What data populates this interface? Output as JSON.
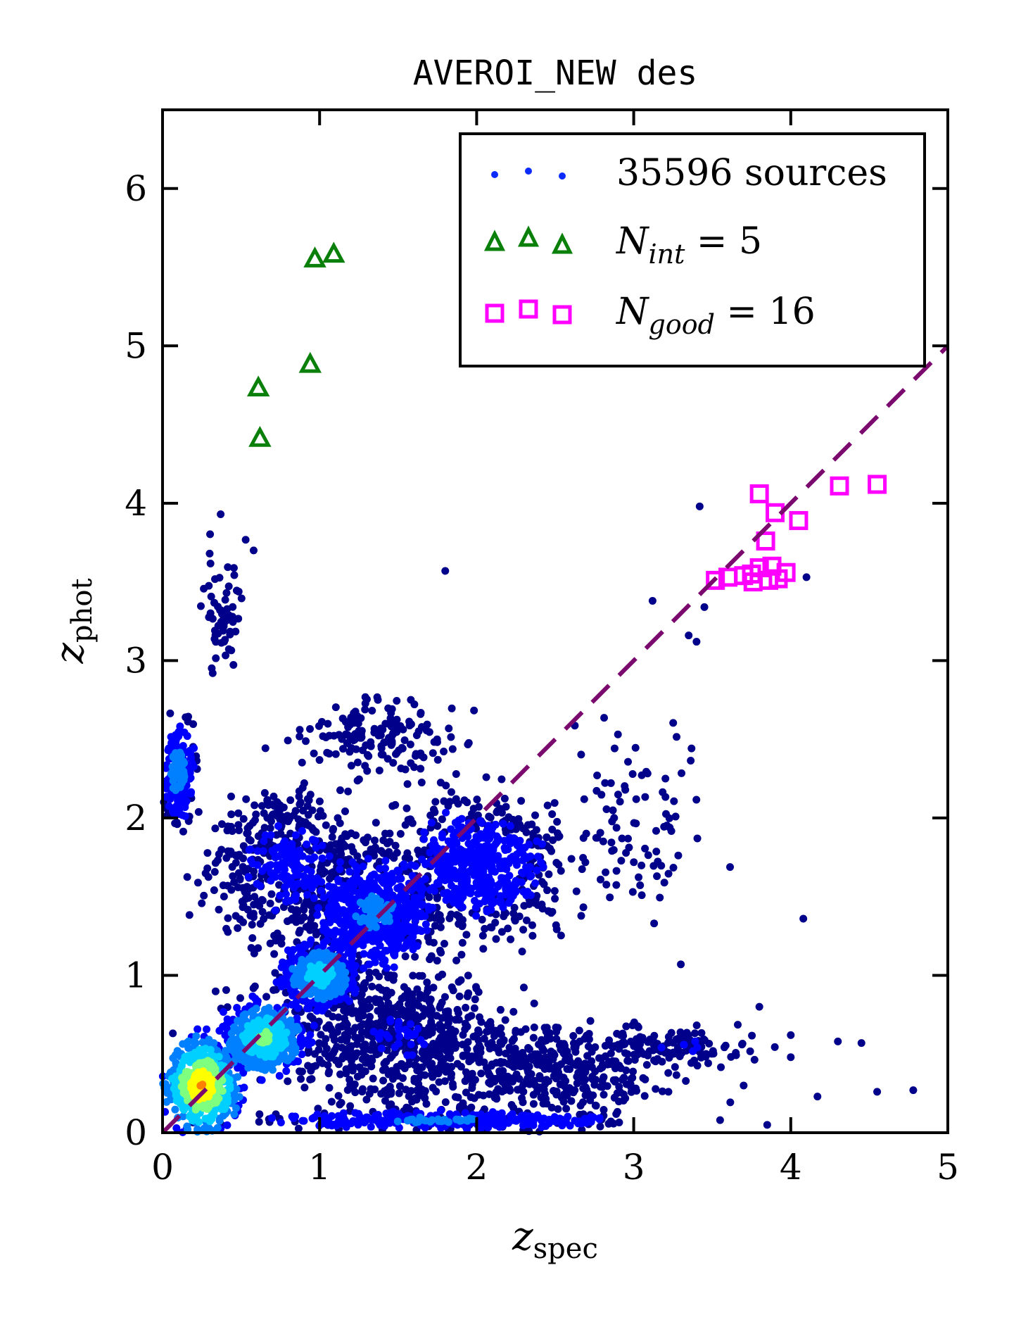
{
  "chart_data": {
    "type": "scatter",
    "title": "AVEROI_NEW des",
    "xlabel": "z",
    "xlabel_sub": "spec",
    "ylabel": "z",
    "ylabel_sub": "phot",
    "xlim": [
      0,
      5
    ],
    "ylim": [
      0,
      6.5
    ],
    "x_ticks": [
      "0",
      "1",
      "2",
      "3",
      "4",
      "5"
    ],
    "y_ticks": [
      "0",
      "1",
      "2",
      "3",
      "4",
      "5",
      "6"
    ],
    "grid": false,
    "legend_position": "top-right",
    "reference_line": {
      "x": [
        0,
        5
      ],
      "y": [
        0,
        5
      ],
      "style": "dashed",
      "color": "#7b0a6e"
    },
    "legend": [
      {
        "text": "35596 sources"
      },
      {
        "var": "N",
        "sub": "int",
        "rest": " = 5"
      },
      {
        "var": "N",
        "sub": "good",
        "rest": " = 16"
      }
    ],
    "series": [
      {
        "name": "35596 sources",
        "marker": "dot",
        "colormap": [
          "#00008b",
          "#0000ff",
          "#0080ff",
          "#00d0ff",
          "#7fff7f",
          "#ffff00",
          "#ff8000"
        ],
        "clusters": [
          {
            "cx": 0.25,
            "cy": 0.3,
            "sx": 0.18,
            "sy": 0.22,
            "n": 600,
            "density": 0.85
          },
          {
            "cx": 0.65,
            "cy": 0.6,
            "sx": 0.2,
            "sy": 0.18,
            "n": 500,
            "density": 0.6
          },
          {
            "cx": 1.0,
            "cy": 1.0,
            "sx": 0.18,
            "sy": 0.16,
            "n": 450,
            "density": 0.5
          },
          {
            "cx": 1.35,
            "cy": 1.4,
            "sx": 0.3,
            "sy": 0.3,
            "n": 600,
            "density": 0.3
          },
          {
            "cx": 2.0,
            "cy": 1.7,
            "sx": 0.45,
            "sy": 0.35,
            "n": 700,
            "density": 0.2
          },
          {
            "cx": 0.8,
            "cy": 1.7,
            "sx": 0.4,
            "sy": 0.4,
            "n": 500,
            "density": 0.15
          },
          {
            "cx": 0.1,
            "cy": 2.3,
            "sx": 0.08,
            "sy": 0.25,
            "n": 200,
            "density": 0.35
          },
          {
            "cx": 1.5,
            "cy": 0.6,
            "sx": 0.6,
            "sy": 0.35,
            "n": 700,
            "density": 0.12
          },
          {
            "cx": 2.5,
            "cy": 0.4,
            "sx": 0.6,
            "sy": 0.25,
            "n": 400,
            "density": 0.1
          },
          {
            "cx": 1.8,
            "cy": 0.08,
            "sx": 0.9,
            "sy": 0.05,
            "n": 300,
            "density": 0.3
          },
          {
            "cx": 1.4,
            "cy": 2.5,
            "sx": 0.4,
            "sy": 0.2,
            "n": 160,
            "density": 0.05
          },
          {
            "cx": 0.4,
            "cy": 3.3,
            "sx": 0.1,
            "sy": 0.35,
            "n": 60,
            "density": 0.02
          },
          {
            "cx": 3.0,
            "cy": 2.0,
            "sx": 0.4,
            "sy": 0.5,
            "n": 90,
            "density": 0.03
          },
          {
            "cx": 3.3,
            "cy": 0.55,
            "sx": 0.4,
            "sy": 0.1,
            "n": 120,
            "density": 0.12
          }
        ],
        "outliers": [
          [
            4.78,
            0.27
          ],
          [
            4.55,
            0.26
          ],
          [
            4.45,
            0.57
          ],
          [
            4.3,
            0.58
          ],
          [
            4.17,
            0.23
          ],
          [
            4.0,
            0.48
          ],
          [
            4.0,
            0.62
          ],
          [
            3.8,
            0.8
          ],
          [
            3.7,
            0.3
          ],
          [
            4.08,
            1.36
          ],
          [
            4.1,
            3.53
          ],
          [
            3.42,
            3.98
          ],
          [
            3.35,
            3.16
          ],
          [
            3.45,
            3.34
          ],
          [
            3.13,
            1.33
          ],
          [
            3.3,
            1.07
          ],
          [
            1.8,
            3.57
          ],
          [
            0.37,
            3.93
          ],
          [
            0.3,
            3.68
          ],
          [
            0.58,
            3.7
          ],
          [
            3.85,
            0.05
          ],
          [
            3.55,
            0.08
          ],
          [
            3.12,
            3.38
          ],
          [
            3.4,
            3.12
          ]
        ]
      },
      {
        "name": "N_int = 5",
        "marker": "triangle",
        "color": "#0a800a",
        "points": [
          [
            0.61,
            4.73
          ],
          [
            0.62,
            4.41
          ],
          [
            0.94,
            4.88
          ],
          [
            0.97,
            5.55
          ],
          [
            1.09,
            5.58
          ]
        ]
      },
      {
        "name": "N_good = 16",
        "marker": "square",
        "color": "#ff00ff",
        "points": [
          [
            3.52,
            3.51
          ],
          [
            3.6,
            3.53
          ],
          [
            3.7,
            3.54
          ],
          [
            3.76,
            3.5
          ],
          [
            3.8,
            3.59
          ],
          [
            3.86,
            3.51
          ],
          [
            3.88,
            3.6
          ],
          [
            3.97,
            3.56
          ],
          [
            3.84,
            3.76
          ],
          [
            3.8,
            4.06
          ],
          [
            3.9,
            3.94
          ],
          [
            4.05,
            3.89
          ],
          [
            3.75,
            3.55
          ],
          [
            3.92,
            3.52
          ],
          [
            4.31,
            4.11
          ],
          [
            4.55,
            4.12
          ]
        ]
      }
    ]
  }
}
